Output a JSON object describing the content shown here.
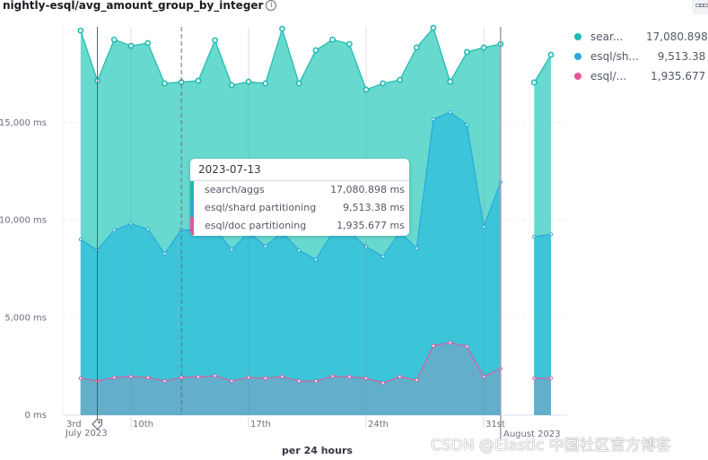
{
  "header": {
    "title": "nightly-esql/avg_amount_group_by_integer",
    "info_icon": "i",
    "menu_icon": "▫▫▫"
  },
  "legend": [
    {
      "label": "sear...",
      "value": "17,080.898 ms",
      "color": "#1ebbaf"
    },
    {
      "label": "esql/sh...",
      "value": "9,513.38 ms",
      "color": "#2ba8db"
    },
    {
      "label": "esql/...",
      "value": "1,935.677 ms",
      "color": "#e6559a"
    }
  ],
  "tooltip": {
    "date": "2023-07-13",
    "rows": [
      {
        "label": "search/aggs",
        "value": "17,080.898 ms",
        "color": "#1ebbaf"
      },
      {
        "label": "esql/shard partitioning",
        "value": "9,513.38 ms",
        "color": "#2ba8db"
      },
      {
        "label": "esql/doc partitioning",
        "value": "1,935.677 ms",
        "color": "#e6559a"
      }
    ]
  },
  "axis": {
    "x_title": "per 24 hours",
    "y_ticks": [
      "0 ms",
      "5,000 ms",
      "10,000 ms",
      "15,000 ms"
    ],
    "x_ticks": [
      "3rd",
      "10th",
      "17th",
      "24th",
      "31st"
    ],
    "x_subticks": [
      "July 2023",
      "August 2023"
    ]
  },
  "watermark": "CSDN @Elastic 中国社区官方博客",
  "chart_data": {
    "type": "area",
    "title": "nightly-esql/avg_amount_group_by_integer",
    "xlabel": "per 24 hours",
    "ylabel": "ms",
    "ylim": [
      0,
      20000
    ],
    "y_ticks": [
      0,
      5000,
      10000,
      15000
    ],
    "x": [
      "2023-07-07",
      "2023-07-08",
      "2023-07-09",
      "2023-07-10",
      "2023-07-11",
      "2023-07-12",
      "2023-07-13",
      "2023-07-14",
      "2023-07-15",
      "2023-07-16",
      "2023-07-17",
      "2023-07-18",
      "2023-07-19",
      "2023-07-20",
      "2023-07-21",
      "2023-07-22",
      "2023-07-23",
      "2023-07-24",
      "2023-07-25",
      "2023-07-26",
      "2023-07-27",
      "2023-07-28",
      "2023-07-29",
      "2023-07-30",
      "2023-07-31",
      "2023-08-01",
      "2023-08-03",
      "2023-08-04"
    ],
    "series": [
      {
        "name": "search/aggs",
        "color": "#1ebbaf",
        "values": [
          19720,
          17150,
          19260,
          18940,
          19080,
          17010,
          17081,
          17150,
          19220,
          16920,
          17100,
          17010,
          19810,
          17010,
          18710,
          19260,
          19030,
          16690,
          17010,
          17190,
          18850,
          19860,
          17100,
          18620,
          18850,
          19030,
          17060,
          18480
        ]
      },
      {
        "name": "esql/shard partitioning",
        "color": "#2ba8db",
        "values": [
          9010,
          8460,
          9490,
          9810,
          9540,
          8280,
          9513,
          9450,
          9560,
          8490,
          9380,
          8660,
          9380,
          8460,
          7980,
          9380,
          9400,
          8640,
          8140,
          9380,
          8560,
          15170,
          15540,
          14900,
          9660,
          11950,
          9150,
          9270
        ]
      },
      {
        "name": "esql/doc partitioning",
        "color": "#e6559a",
        "values": [
          1890,
          1750,
          1930,
          1980,
          1930,
          1750,
          1936,
          1960,
          2020,
          1750,
          1930,
          1890,
          1980,
          1750,
          1750,
          2000,
          1960,
          1890,
          1660,
          1970,
          1800,
          3560,
          3720,
          3520,
          1980,
          2390,
          1890,
          1890
        ]
      }
    ],
    "annotations": [
      {
        "type": "vertical-line",
        "x": "2023-07-08",
        "style": "solid dark"
      },
      {
        "type": "vertical-line",
        "x": "2023-07-13",
        "style": "dashed (hover)"
      },
      {
        "type": "vertical-line",
        "x": "2023-08-01",
        "style": "solid"
      }
    ],
    "legend_position": "right",
    "grid": "horizontal dashed"
  }
}
